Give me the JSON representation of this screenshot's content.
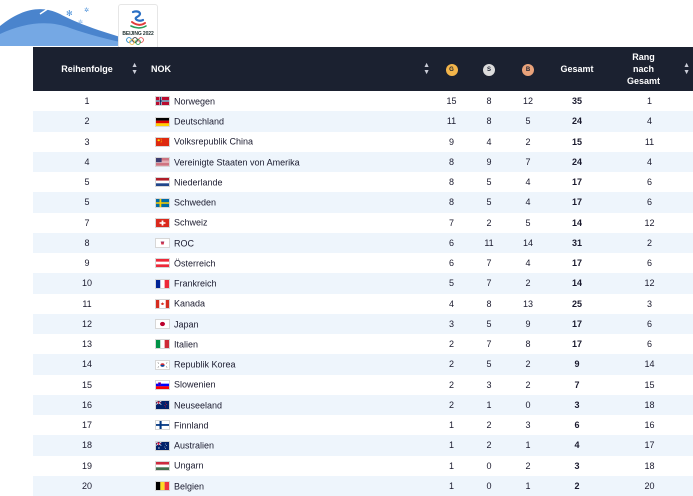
{
  "logo": {
    "text": "BEIJING 2022"
  },
  "header": {
    "rank": "Reihenfolge",
    "nok": "NOK",
    "gold": "G",
    "silver": "S",
    "bronze": "B",
    "total": "Gesamt",
    "rank_total_1": "Rang",
    "rank_total_2": "nach",
    "rank_total_3": "Gesamt"
  },
  "rows": [
    {
      "rank": "1",
      "country": "Norwegen",
      "flag": "norway-flag-icon",
      "g": "15",
      "s": "8",
      "b": "12",
      "total": "35",
      "rank_total": "1"
    },
    {
      "rank": "2",
      "country": "Deutschland",
      "flag": "germany-flag-icon",
      "g": "11",
      "s": "8",
      "b": "5",
      "total": "24",
      "rank_total": "4"
    },
    {
      "rank": "3",
      "country": "Volksrepublik China",
      "flag": "china-flag-icon",
      "g": "9",
      "s": "4",
      "b": "2",
      "total": "15",
      "rank_total": "11"
    },
    {
      "rank": "4",
      "country": "Vereinigte Staaten von Amerika",
      "flag": "usa-flag-icon",
      "g": "8",
      "s": "9",
      "b": "7",
      "total": "24",
      "rank_total": "4"
    },
    {
      "rank": "5",
      "country": "Niederlande",
      "flag": "netherlands-flag-icon",
      "g": "8",
      "s": "5",
      "b": "4",
      "total": "17",
      "rank_total": "6"
    },
    {
      "rank": "5",
      "country": "Schweden",
      "flag": "sweden-flag-icon",
      "g": "8",
      "s": "5",
      "b": "4",
      "total": "17",
      "rank_total": "6"
    },
    {
      "rank": "7",
      "country": "Schweiz",
      "flag": "switzerland-flag-icon",
      "g": "7",
      "s": "2",
      "b": "5",
      "total": "14",
      "rank_total": "12"
    },
    {
      "rank": "8",
      "country": "ROC",
      "flag": "roc-flag-icon",
      "g": "6",
      "s": "11",
      "b": "14",
      "total": "31",
      "rank_total": "2"
    },
    {
      "rank": "9",
      "country": "Österreich",
      "flag": "austria-flag-icon",
      "g": "6",
      "s": "7",
      "b": "4",
      "total": "17",
      "rank_total": "6"
    },
    {
      "rank": "10",
      "country": "Frankreich",
      "flag": "france-flag-icon",
      "g": "5",
      "s": "7",
      "b": "2",
      "total": "14",
      "rank_total": "12"
    },
    {
      "rank": "11",
      "country": "Kanada",
      "flag": "canada-flag-icon",
      "g": "4",
      "s": "8",
      "b": "13",
      "total": "25",
      "rank_total": "3"
    },
    {
      "rank": "12",
      "country": "Japan",
      "flag": "japan-flag-icon",
      "g": "3",
      "s": "5",
      "b": "9",
      "total": "17",
      "rank_total": "6"
    },
    {
      "rank": "13",
      "country": "Italien",
      "flag": "italy-flag-icon",
      "g": "2",
      "s": "7",
      "b": "8",
      "total": "17",
      "rank_total": "6"
    },
    {
      "rank": "14",
      "country": "Republik Korea",
      "flag": "korea-flag-icon",
      "g": "2",
      "s": "5",
      "b": "2",
      "total": "9",
      "rank_total": "14"
    },
    {
      "rank": "15",
      "country": "Slowenien",
      "flag": "slovenia-flag-icon",
      "g": "2",
      "s": "3",
      "b": "2",
      "total": "7",
      "rank_total": "15"
    },
    {
      "rank": "16",
      "country": "Neuseeland",
      "flag": "new-zealand-flag-icon",
      "g": "2",
      "s": "1",
      "b": "0",
      "total": "3",
      "rank_total": "18"
    },
    {
      "rank": "17",
      "country": "Finnland",
      "flag": "finland-flag-icon",
      "g": "1",
      "s": "2",
      "b": "3",
      "total": "6",
      "rank_total": "16"
    },
    {
      "rank": "18",
      "country": "Australien",
      "flag": "australia-flag-icon",
      "g": "1",
      "s": "2",
      "b": "1",
      "total": "4",
      "rank_total": "17"
    },
    {
      "rank": "19",
      "country": "Ungarn",
      "flag": "hungary-flag-icon",
      "g": "1",
      "s": "0",
      "b": "2",
      "total": "3",
      "rank_total": "18"
    },
    {
      "rank": "20",
      "country": "Belgien",
      "flag": "belgium-flag-icon",
      "g": "1",
      "s": "0",
      "b": "1",
      "total": "2",
      "rank_total": "20"
    }
  ],
  "colors": {
    "header_bg": "#1b2130",
    "row_alt": "#eef5fc",
    "gold": "#f3b54a",
    "silver": "#dcdcdc",
    "bronze": "#e9a27a"
  }
}
